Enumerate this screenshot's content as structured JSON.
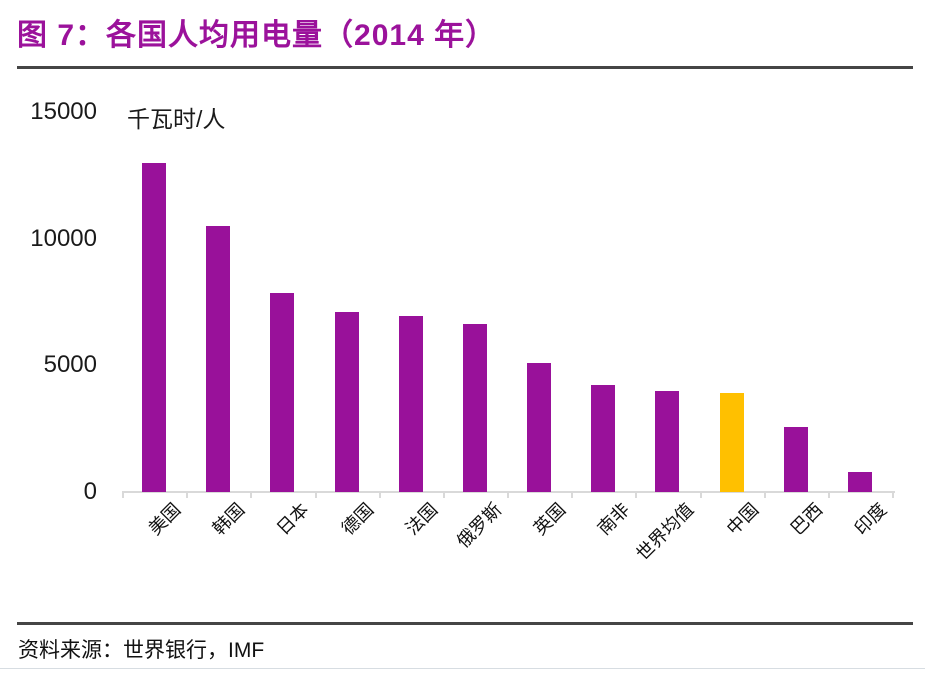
{
  "title": {
    "text": "图 7：各国人均用电量（2014 年）"
  },
  "colors": {
    "title": "#9B129B",
    "bar": "#99119A",
    "highlight": "#FFC000",
    "axis": "#D9D9D9"
  },
  "chart_data": {
    "type": "bar",
    "title": "图 7：各国人均用电量（2014 年）",
    "unit_label": "千瓦时/人",
    "categories": [
      "美国",
      "韩国",
      "日本",
      "德国",
      "法国",
      "俄罗斯",
      "英国",
      "南非",
      "世界均值",
      "中国",
      "巴西",
      "印度"
    ],
    "values": [
      13000,
      10500,
      7850,
      7100,
      6950,
      6630,
      5100,
      4230,
      3990,
      3900,
      2550,
      780
    ],
    "highlight_category": "中国",
    "bar_color": "#99119A",
    "highlight_color": "#FFC000",
    "ylim": [
      0,
      15000
    ],
    "yticks": [
      0,
      5000,
      10000,
      15000
    ],
    "grid": false,
    "legend": null,
    "xlabel": "",
    "ylabel": "千瓦时/人"
  },
  "footer": {
    "source_text": "资料来源：世界银行，IMF"
  }
}
